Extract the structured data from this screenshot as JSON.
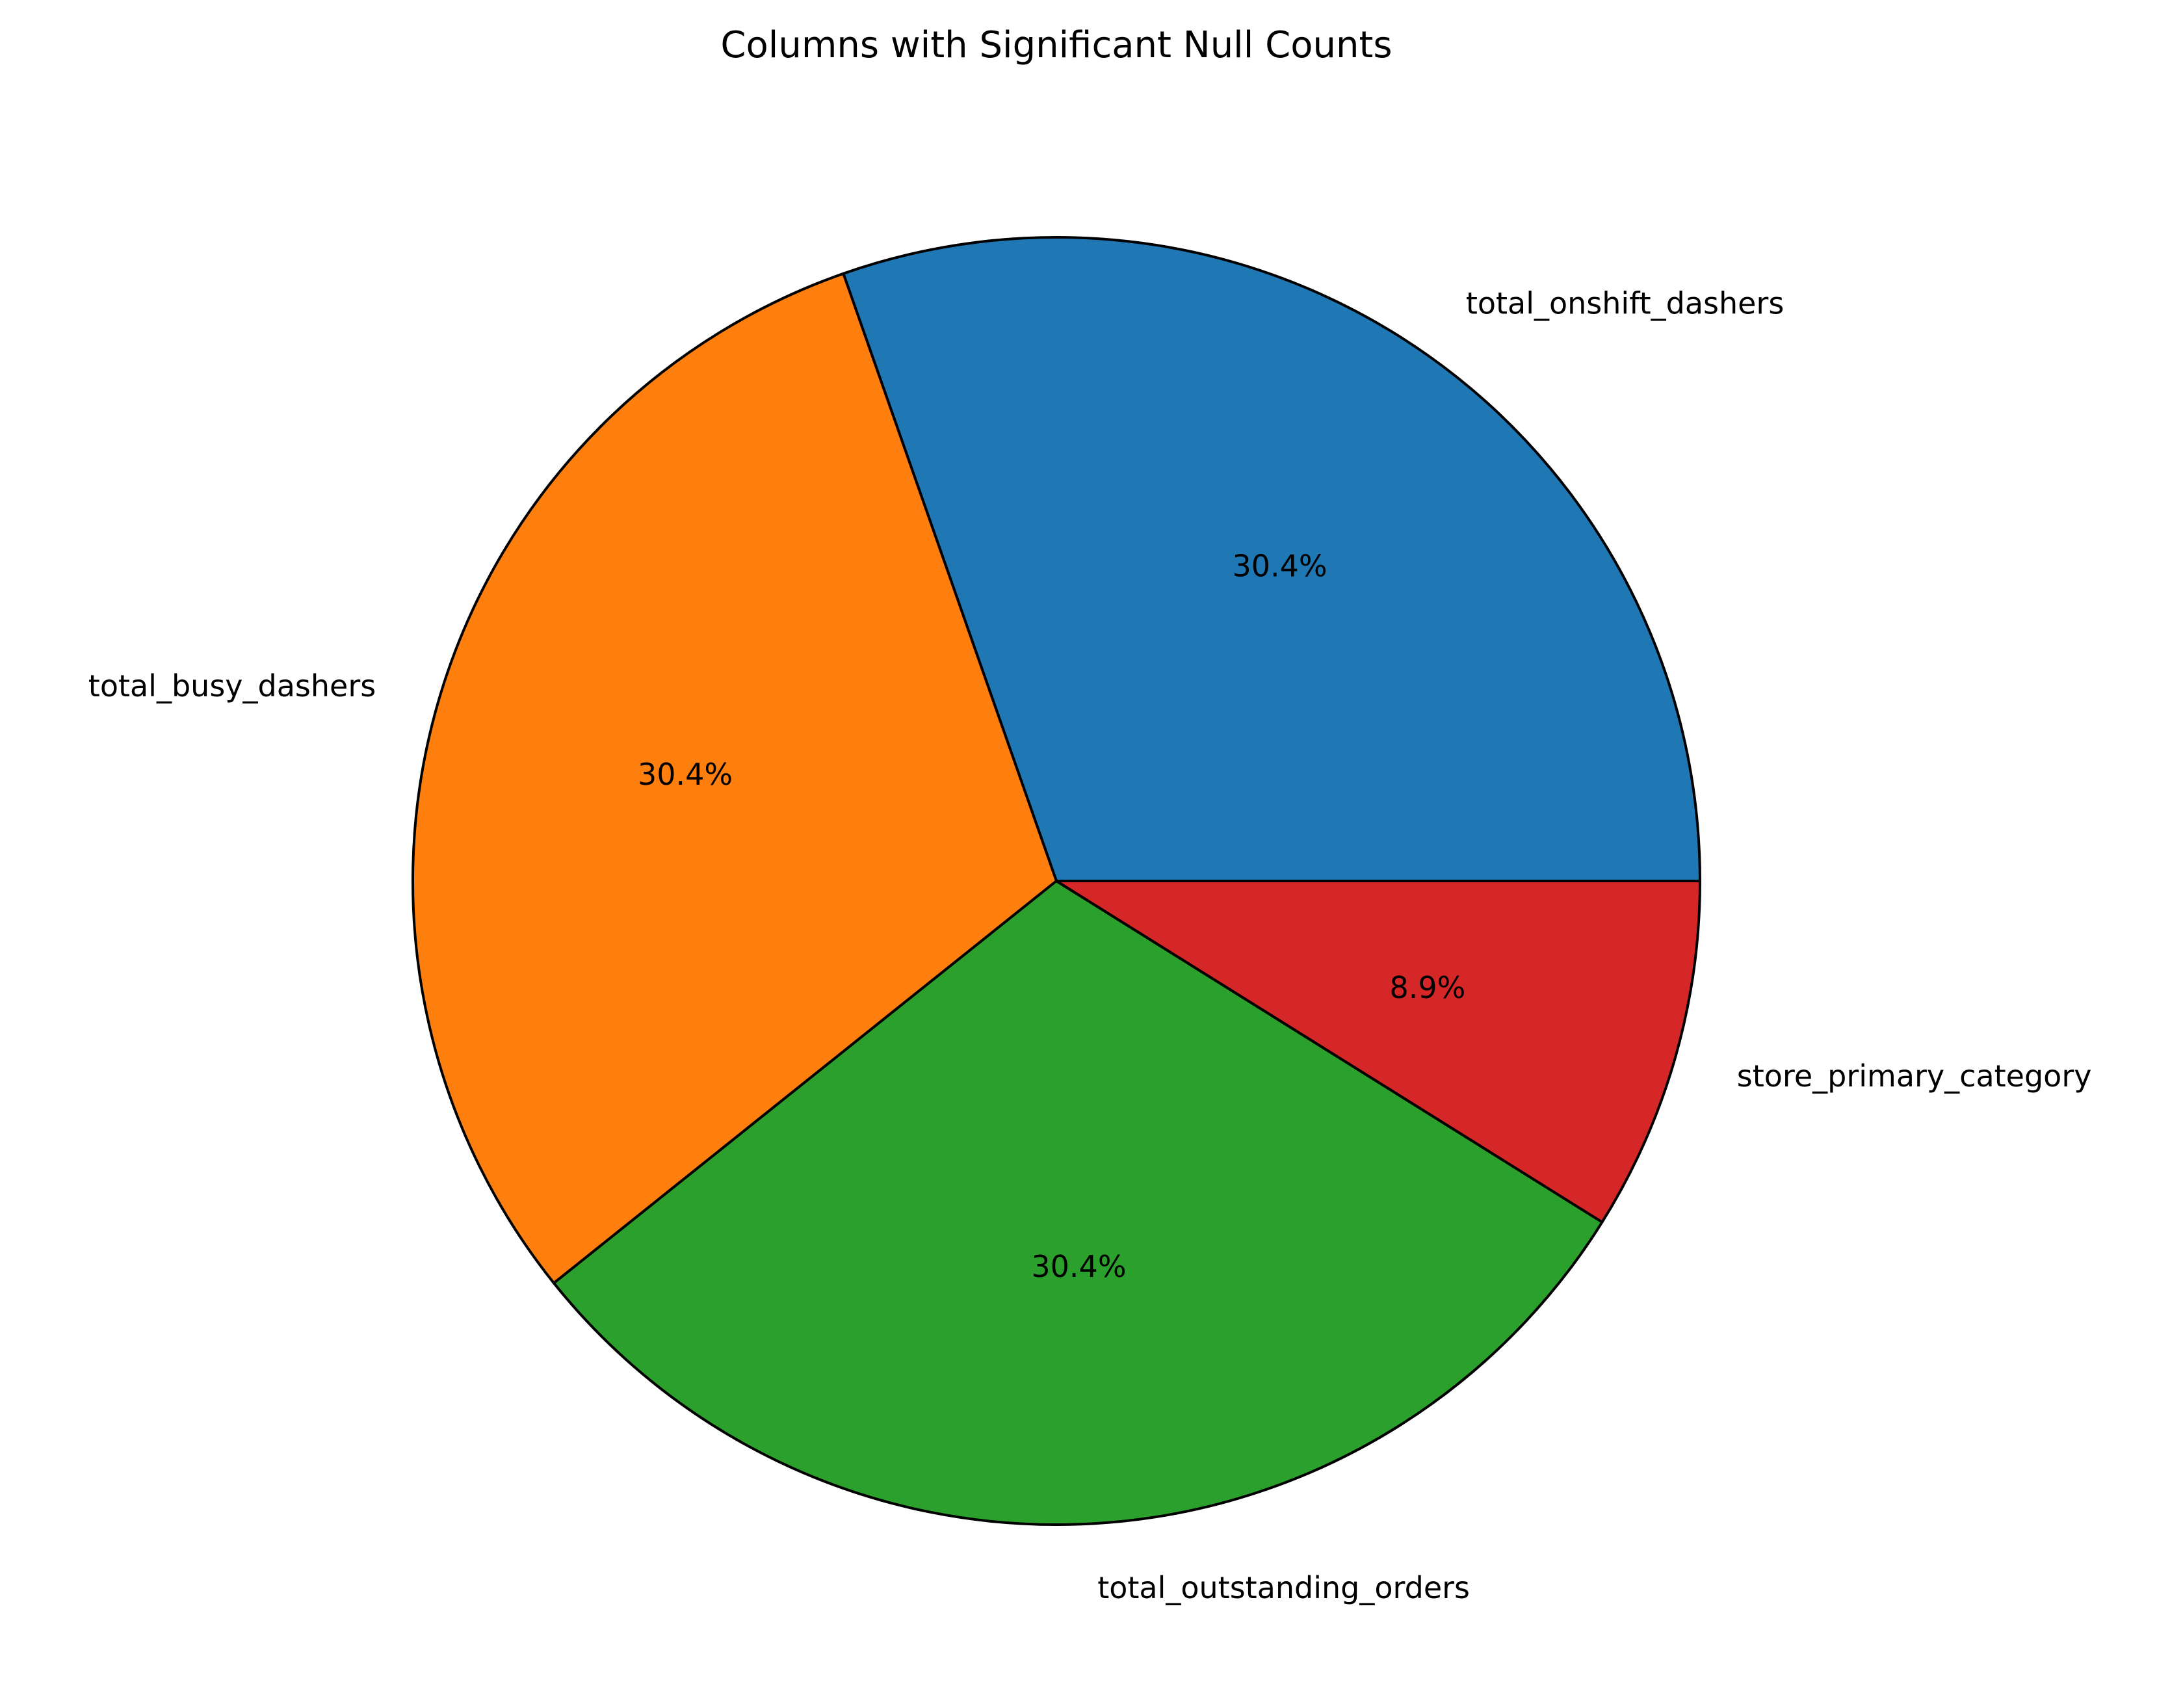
{
  "chart_data": {
    "type": "pie",
    "title": "Columns with Significant Null Counts",
    "categories": [
      "total_onshift_dashers",
      "total_busy_dashers",
      "total_outstanding_orders",
      "store_primary_category"
    ],
    "values": [
      30.4,
      30.4,
      30.4,
      8.9
    ],
    "percent_labels": [
      "30.4%",
      "30.4%",
      "30.4%",
      "8.9%"
    ],
    "colors": [
      "#1f77b4",
      "#ff7f0e",
      "#2ca02c",
      "#d62728"
    ],
    "start_angle": 0,
    "direction": "counterclockwise",
    "edge_color": "#000000",
    "legend": "none"
  }
}
